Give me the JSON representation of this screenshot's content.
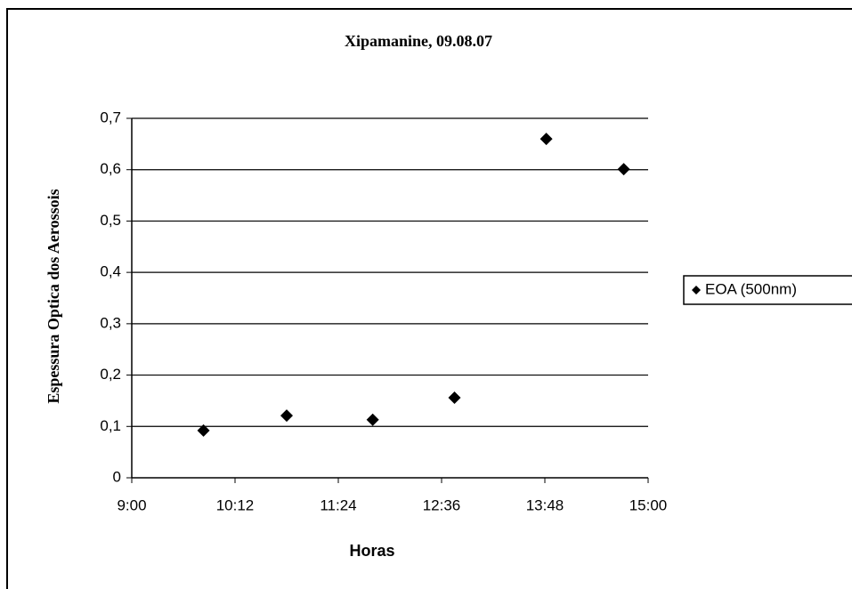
{
  "chart_data": {
    "type": "scatter",
    "title": "Xipamanine, 09.08.07",
    "x_label": "Horas",
    "y_label": "Espessura Optica dos Aerossois",
    "series": [
      {
        "name": "EOA (500nm)",
        "color": "#000000",
        "x": [
          590,
          648,
          708,
          765,
          829,
          883
        ],
        "values": [
          0.092,
          0.121,
          0.113,
          0.156,
          0.66,
          0.601
        ]
      }
    ],
    "xlim": [
      540,
      900
    ],
    "xticks": [
      {
        "value": 540,
        "label": "9:00"
      },
      {
        "value": 612,
        "label": "10:12"
      },
      {
        "value": 684,
        "label": "11:24"
      },
      {
        "value": 756,
        "label": "12:36"
      },
      {
        "value": 828,
        "label": "13:48"
      },
      {
        "value": 900,
        "label": "15:00"
      }
    ],
    "ylim": [
      0,
      0.7
    ],
    "yticks": [
      0,
      {
        "value": 0.1,
        "label": "0,1"
      },
      {
        "value": 0.2,
        "label": "0,2"
      },
      {
        "value": 0.3,
        "label": "0,3"
      },
      {
        "value": 0.4,
        "label": "0,4"
      },
      {
        "value": 0.5,
        "label": "0,5"
      },
      {
        "value": 0.6,
        "label": "0,6"
      },
      {
        "value": 0.7,
        "label": "0,7"
      }
    ],
    "grid": true,
    "legend": "right"
  }
}
